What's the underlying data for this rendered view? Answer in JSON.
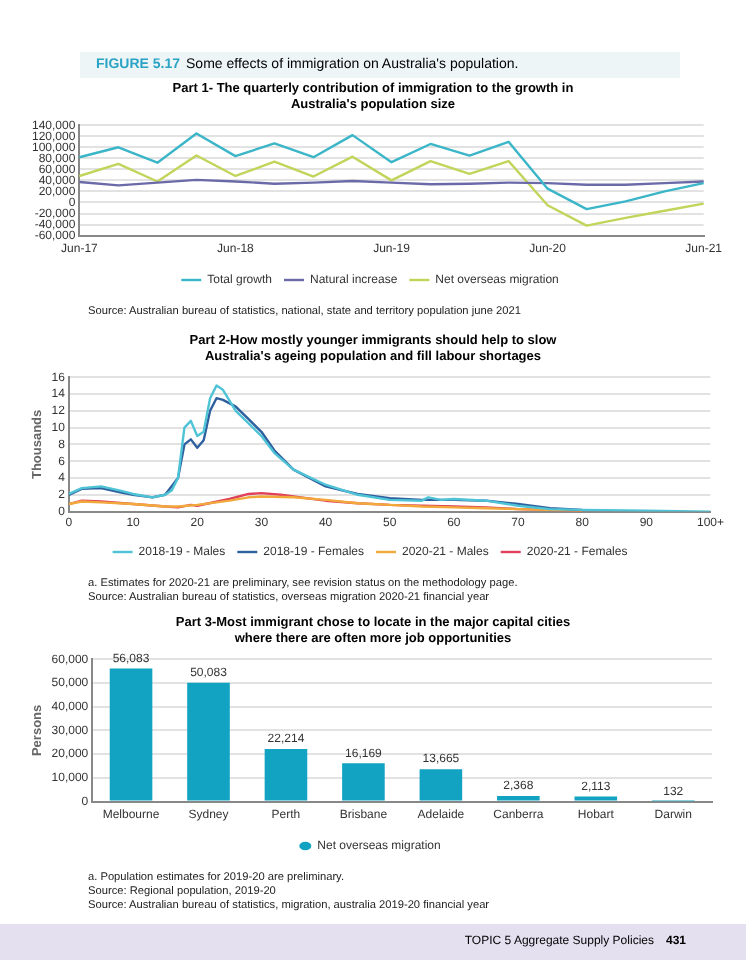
{
  "chart_data": [
    {
      "type": "other",
      "annotations": [
        "FIGURE 5.17",
        "Some effects of immigration on Australia's population."
      ]
    },
    {
      "type": "line",
      "title": "Part 1- The quarterly contribution of immigration to the growth in Australia's population size",
      "categories": [
        "Jun-17",
        null,
        null,
        null,
        "Jun-18",
        null,
        null,
        null,
        "Jun-19",
        null,
        null,
        null,
        "Jun-20",
        null,
        null,
        null,
        "Jun-21"
      ],
      "series": [
        {
          "name": "Total growth",
          "color": "#3bb5c8",
          "values": [
            82000,
            100000,
            72000,
            125000,
            84000,
            107000,
            82000,
            122000,
            73000,
            106000,
            85000,
            110000,
            25000,
            -12000,
            2000,
            20000,
            35000
          ]
        },
        {
          "name": "Natural increase",
          "color": "#6b6aa8",
          "values": [
            37000,
            31000,
            36000,
            41000,
            38000,
            34000,
            36000,
            39000,
            36000,
            33000,
            34000,
            36000,
            35000,
            32000,
            32000,
            35000,
            38000
          ]
        },
        {
          "name": "Net overseas migration",
          "color": "#c3d45a",
          "values": [
            48000,
            70000,
            38000,
            85000,
            48000,
            74000,
            47000,
            83000,
            40000,
            75000,
            52000,
            75000,
            -5000,
            -42000,
            -28000,
            -15000,
            -2000
          ]
        }
      ],
      "ylim": [
        -60000,
        140000
      ],
      "yticks": [
        {
          "value": -60000,
          "label": "-60,000"
        },
        {
          "value": -40000,
          "label": "-40,000"
        },
        {
          "value": -20000,
          "label": "-20,000"
        },
        0,
        {
          "value": 20000,
          "label": "20,000"
        },
        {
          "value": 40000,
          "label": "40,000"
        },
        {
          "value": 60000,
          "label": "60,000"
        },
        {
          "value": 80000,
          "label": "80,000"
        },
        {
          "value": 100000,
          "label": "100,000"
        },
        {
          "value": 120000,
          "label": "120,000"
        },
        {
          "value": 140000,
          "label": "140,000"
        }
      ],
      "grid": "y",
      "legend": "bottom",
      "marker": "none",
      "line_style": "solid",
      "annotations": [
        "Source: Australian bureau of statistics, national, state and territory population june 2021"
      ]
    },
    {
      "type": "line",
      "title": "Part 2-How mostly younger immigrants should help to slow Australia's ageing population and fill labour shortages",
      "ylabel": "Thousands",
      "series": [
        {
          "name": "2018-19 - Males",
          "color": "#4fc3d6",
          "x": [
            0,
            2,
            5,
            8,
            10,
            13,
            15,
            16,
            17,
            18,
            19,
            20,
            21,
            22,
            23,
            24,
            26,
            28,
            30,
            32,
            35,
            40,
            45,
            50,
            55,
            56,
            58,
            60,
            65,
            70,
            75,
            80,
            90,
            100
          ],
          "values": [
            2.1,
            2.8,
            3.0,
            2.5,
            2.1,
            1.7,
            2.0,
            2.5,
            4,
            10,
            10.8,
            9,
            9.5,
            13.5,
            15,
            14.5,
            12,
            10.5,
            9,
            7,
            5,
            3.2,
            2,
            1.4,
            1.3,
            1.7,
            1.4,
            1.5,
            1.3,
            0.7,
            0.3,
            0.2,
            0.1,
            0
          ]
        },
        {
          "name": "2018-19 - Females",
          "color": "#2e5f9e",
          "x": [
            0,
            2,
            5,
            8,
            10,
            13,
            15,
            17,
            18,
            19,
            20,
            21,
            22,
            23,
            24,
            26,
            28,
            30,
            32,
            35,
            40,
            45,
            50,
            55,
            60,
            65,
            70,
            75,
            80
          ],
          "values": [
            2,
            2.7,
            2.8,
            2.3,
            2,
            1.7,
            2,
            4,
            8,
            8.6,
            7.6,
            8.5,
            12,
            13.5,
            13.3,
            12.5,
            11,
            9.5,
            7.3,
            5,
            3,
            2.1,
            1.6,
            1.4,
            1.4,
            1.3,
            0.9,
            0.4,
            0.2
          ]
        },
        {
          "name": "2020-21 - Males",
          "color": "#f2a93b",
          "x": [
            0,
            2,
            5,
            10,
            15,
            17,
            20,
            25,
            28,
            30,
            35,
            40,
            45,
            50,
            55,
            60,
            65,
            70,
            80
          ],
          "values": [
            0.9,
            1.2,
            1.1,
            0.9,
            0.6,
            0.6,
            0.8,
            1.3,
            1.7,
            1.8,
            1.7,
            1.4,
            1.0,
            0.8,
            0.6,
            0.5,
            0.4,
            0.3,
            0.1
          ]
        },
        {
          "name": "2020-21 - Females",
          "color": "#e0405a",
          "x": [
            0,
            2,
            5,
            10,
            15,
            17,
            19,
            20,
            25,
            28,
            30,
            33,
            35,
            40,
            45,
            50,
            55,
            60,
            65,
            70,
            80
          ],
          "values": [
            0.9,
            1.3,
            1.2,
            0.9,
            0.6,
            0.5,
            0.8,
            0.7,
            1.5,
            2.1,
            2.2,
            2.0,
            1.8,
            1.3,
            1.0,
            0.8,
            0.7,
            0.6,
            0.5,
            0.3,
            0.1
          ]
        }
      ],
      "xlim": [
        0,
        100
      ],
      "xticks": [
        0,
        10,
        20,
        30,
        40,
        50,
        60,
        70,
        80,
        90,
        {
          "value": 100,
          "label": "100+"
        }
      ],
      "ylim": [
        0,
        16
      ],
      "yticks": [
        0,
        2,
        4,
        6,
        8,
        10,
        12,
        14,
        16
      ],
      "grid": "y",
      "legend": "bottom",
      "marker": "none",
      "line_style": "solid",
      "annotations": [
        "a. Estimates for 2020-21 are preliminary, see revision status on the methodology page.",
        "Source: Australian bureau of statistics, overseas migration 2020-21 financial year"
      ]
    },
    {
      "type": "bar",
      "title": "Part 3-Most immigrant chose to locate in the major capital cities where there are often more job opportunities",
      "ylabel": "Persons",
      "categories": [
        "Melbourne",
        "Sydney",
        "Perth",
        "Brisbane",
        "Adelaide",
        "Canberra",
        "Hobart",
        "Darwin"
      ],
      "series": [
        {
          "name": "Net overseas migration",
          "color": "#12a3c2",
          "values": [
            56083,
            50083,
            22214,
            16169,
            13665,
            2368,
            2113,
            132
          ],
          "value_labels": [
            "56,083",
            "50,083",
            "22,214",
            "16,169",
            "13,665",
            "2,368",
            "2,113",
            "132"
          ]
        }
      ],
      "ylim": [
        0,
        60000
      ],
      "yticks": [
        0,
        {
          "value": 10000,
          "label": "10,000"
        },
        {
          "value": 20000,
          "label": "20,000"
        },
        {
          "value": 30000,
          "label": "30,000"
        },
        {
          "value": 40000,
          "label": "40,000"
        },
        {
          "value": 50000,
          "label": "50,000"
        },
        {
          "value": 60000,
          "label": "60,000"
        }
      ],
      "grid": "y",
      "legend": "bottom",
      "annotations": [
        "a. Population estimates for 2019-20 are preliminary.",
        "Source: Regional population, 2019-20",
        "Source: Australian bureau of statistics, migration, australia 2019-20 financial year"
      ]
    },
    {
      "type": "other",
      "annotations": [
        "TOPIC 5 Aggregate Supply Policies",
        "431"
      ]
    }
  ]
}
